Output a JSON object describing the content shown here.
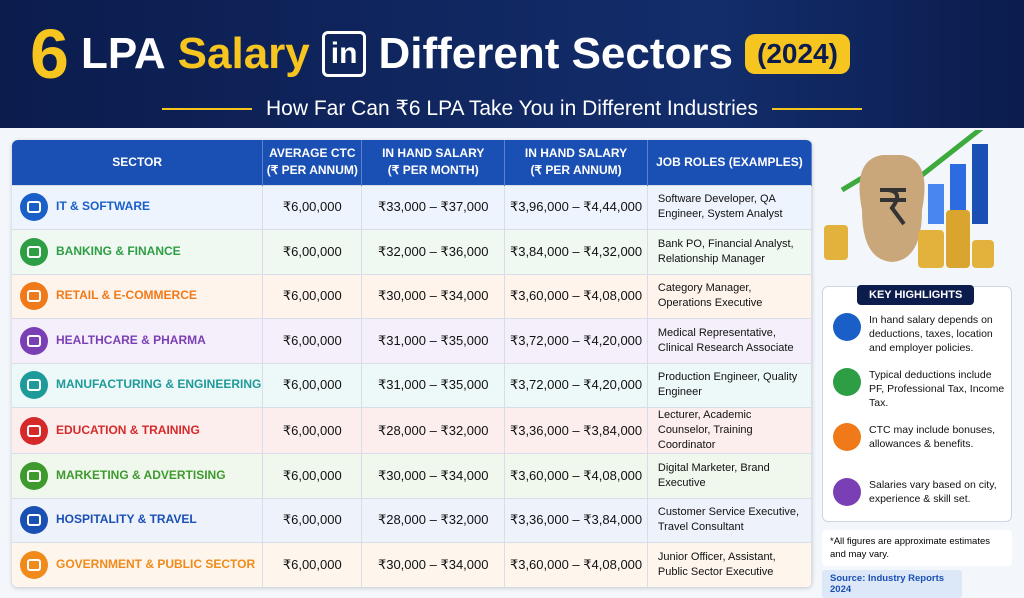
{
  "header": {
    "title_number": "6",
    "title_main": "LPA",
    "title_accent": "Salary",
    "title_in": "in",
    "title_rest": "Different Sectors",
    "year": "(2024)",
    "subtitle": "How Far Can ₹6 LPA Take You in Different Industries"
  },
  "table": {
    "columns": [
      {
        "title": "SECTOR"
      },
      {
        "title": "AVERAGE CTC",
        "subtitle": "(₹ PER ANNUM)"
      },
      {
        "title": "IN HAND SALARY",
        "subtitle": "(₹ PER MONTH)"
      },
      {
        "title": "IN HAND SALARY",
        "subtitle": "(₹ PER ANNUM)"
      },
      {
        "title": "JOB ROLES (EXAMPLES)"
      }
    ],
    "rows": [
      [
        "IT & SOFTWARE",
        "₹6,00,000",
        "₹33,000 – ₹37,000",
        "₹3,96,000 – ₹4,44,000",
        "Software Developer, QA Engineer, System Analyst"
      ],
      [
        "BANKING & FINANCE",
        "₹6,00,000",
        "₹32,000 – ₹36,000",
        "₹3,84,000 – ₹4,32,000",
        "Bank PO, Financial Analyst, Relationship Manager"
      ],
      [
        "RETAIL & E-COMMERCE",
        "₹6,00,000",
        "₹30,000 – ₹34,000",
        "₹3,60,000 – ₹4,08,000",
        "Category Manager, Operations Executive"
      ],
      [
        "HEALTHCARE & PHARMA",
        "₹6,00,000",
        "₹31,000 – ₹35,000",
        "₹3,72,000 – ₹4,20,000",
        "Medical Representative, Clinical Research Associate"
      ],
      [
        "MANUFACTURING & ENGINEERING",
        "₹6,00,000",
        "₹31,000 – ₹35,000",
        "₹3,72,000 – ₹4,20,000",
        "Production Engineer, Quality Engineer"
      ],
      [
        "EDUCATION & TRAINING",
        "₹6,00,000",
        "₹28,000 – ₹32,000",
        "₹3,36,000 – ₹3,84,000",
        "Lecturer, Academic Counselor, Training Coordinator"
      ],
      [
        "MARKETING & ADVERTISING",
        "₹6,00,000",
        "₹30,000 – ₹34,000",
        "₹3,60,000 – ₹4,08,000",
        "Digital Marketer, Brand Executive"
      ],
      [
        "HOSPITALITY & TRAVEL",
        "₹6,00,000",
        "₹28,000 – ₹32,000",
        "₹3,36,000 – ₹3,84,000",
        "Customer Service Executive, Travel Consultant"
      ],
      [
        "GOVERNMENT & PUBLIC SECTOR",
        "₹6,00,000",
        "₹30,000 – ₹34,000",
        "₹3,60,000 – ₹4,08,000",
        "Junior Officer, Assistant, Public Sector Executive"
      ]
    ]
  },
  "highlights": {
    "title": "KEY HIGHLIGHTS",
    "items": [
      "In hand salary depends on deductions, taxes, location and employer policies.",
      "Typical deductions include PF, Professional Tax, Income Tax.",
      "CTC may include bonuses, allowances & benefits.",
      "Salaries vary based on city, experience & skill set."
    ]
  },
  "note": "*All figures are approximate estimates and may vary.",
  "source": "Source: Industry Reports 2024"
}
